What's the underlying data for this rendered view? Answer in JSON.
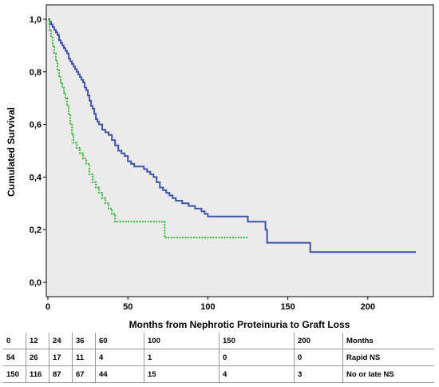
{
  "chart_data": {
    "type": "line",
    "title": "",
    "xlabel": "Months from Nephrotic Proteinuria to Graft Loss",
    "ylabel": "Cumulated Survival",
    "xlim": [
      0,
      240
    ],
    "ylim": [
      0,
      1.0
    ],
    "x_ticks": [
      "0",
      "50",
      "100",
      "150",
      "200"
    ],
    "x_tick_values": [
      0,
      50,
      100,
      150,
      200
    ],
    "y_ticks": [
      "0,0",
      "0,2",
      "0,4",
      "0,6",
      "0,8",
      "1,0"
    ],
    "y_tick_values": [
      0,
      0.2,
      0.4,
      0.6,
      0.8,
      1.0
    ],
    "grid": false,
    "series": [
      {
        "name": "No or late NS",
        "color": "#3f54a8",
        "style": "solid",
        "points": [
          [
            0,
            1.0
          ],
          [
            1,
            0.99
          ],
          [
            2,
            0.98
          ],
          [
            3,
            0.97
          ],
          [
            4,
            0.96
          ],
          [
            5,
            0.95
          ],
          [
            6,
            0.94
          ],
          [
            7,
            0.92
          ],
          [
            8,
            0.91
          ],
          [
            9,
            0.9
          ],
          [
            10,
            0.89
          ],
          [
            11,
            0.88
          ],
          [
            12,
            0.87
          ],
          [
            13,
            0.85
          ],
          [
            14,
            0.84
          ],
          [
            15,
            0.83
          ],
          [
            16,
            0.82
          ],
          [
            17,
            0.81
          ],
          [
            18,
            0.8
          ],
          [
            19,
            0.79
          ],
          [
            20,
            0.78
          ],
          [
            21,
            0.77
          ],
          [
            22,
            0.76
          ],
          [
            23,
            0.74
          ],
          [
            24,
            0.73
          ],
          [
            25,
            0.71
          ],
          [
            26,
            0.69
          ],
          [
            27,
            0.67
          ],
          [
            28,
            0.66
          ],
          [
            29,
            0.64
          ],
          [
            30,
            0.62
          ],
          [
            31,
            0.61
          ],
          [
            32,
            0.6
          ],
          [
            34,
            0.58
          ],
          [
            36,
            0.57
          ],
          [
            38,
            0.56
          ],
          [
            40,
            0.54
          ],
          [
            42,
            0.52
          ],
          [
            44,
            0.5
          ],
          [
            46,
            0.49
          ],
          [
            48,
            0.48
          ],
          [
            50,
            0.46
          ],
          [
            52,
            0.45
          ],
          [
            54,
            0.44
          ],
          [
            60,
            0.43
          ],
          [
            62,
            0.42
          ],
          [
            64,
            0.41
          ],
          [
            66,
            0.4
          ],
          [
            68,
            0.38
          ],
          [
            70,
            0.36
          ],
          [
            72,
            0.35
          ],
          [
            74,
            0.34
          ],
          [
            76,
            0.33
          ],
          [
            78,
            0.32
          ],
          [
            80,
            0.31
          ],
          [
            84,
            0.3
          ],
          [
            88,
            0.29
          ],
          [
            92,
            0.28
          ],
          [
            96,
            0.27
          ],
          [
            98,
            0.26
          ],
          [
            100,
            0.25
          ],
          [
            125,
            0.25
          ],
          [
            125,
            0.23
          ],
          [
            136,
            0.23
          ],
          [
            136,
            0.2
          ],
          [
            137,
            0.2
          ],
          [
            137,
            0.15
          ],
          [
            164,
            0.15
          ],
          [
            164,
            0.115
          ],
          [
            230,
            0.115
          ]
        ]
      },
      {
        "name": "Rapid NS",
        "color": "#35b335",
        "style": "dotted",
        "points": [
          [
            0,
            1.0
          ],
          [
            1,
            0.96
          ],
          [
            2,
            0.93
          ],
          [
            3,
            0.9
          ],
          [
            4,
            0.87
          ],
          [
            5,
            0.84
          ],
          [
            6,
            0.81
          ],
          [
            7,
            0.78
          ],
          [
            8,
            0.76
          ],
          [
            9,
            0.74
          ],
          [
            10,
            0.72
          ],
          [
            11,
            0.7
          ],
          [
            12,
            0.67
          ],
          [
            13,
            0.64
          ],
          [
            14,
            0.6
          ],
          [
            15,
            0.56
          ],
          [
            16,
            0.53
          ],
          [
            18,
            0.51
          ],
          [
            20,
            0.49
          ],
          [
            22,
            0.47
          ],
          [
            24,
            0.45
          ],
          [
            26,
            0.41
          ],
          [
            28,
            0.38
          ],
          [
            30,
            0.36
          ],
          [
            32,
            0.34
          ],
          [
            34,
            0.32
          ],
          [
            36,
            0.3
          ],
          [
            38,
            0.28
          ],
          [
            40,
            0.26
          ],
          [
            42,
            0.23
          ],
          [
            73,
            0.23
          ],
          [
            73,
            0.17
          ],
          [
            125,
            0.17
          ]
        ]
      }
    ]
  },
  "risk_table": {
    "header": [
      "0",
      "12",
      "24",
      "36",
      "60",
      "100",
      "150",
      "200",
      "Months"
    ],
    "rows": [
      [
        "54",
        "26",
        "17",
        "11",
        "4",
        "1",
        "0",
        "0",
        "Rapid NS"
      ],
      [
        "150",
        "116",
        "87",
        "67",
        "44",
        "15",
        "4",
        "3",
        "No or late NS"
      ]
    ]
  }
}
